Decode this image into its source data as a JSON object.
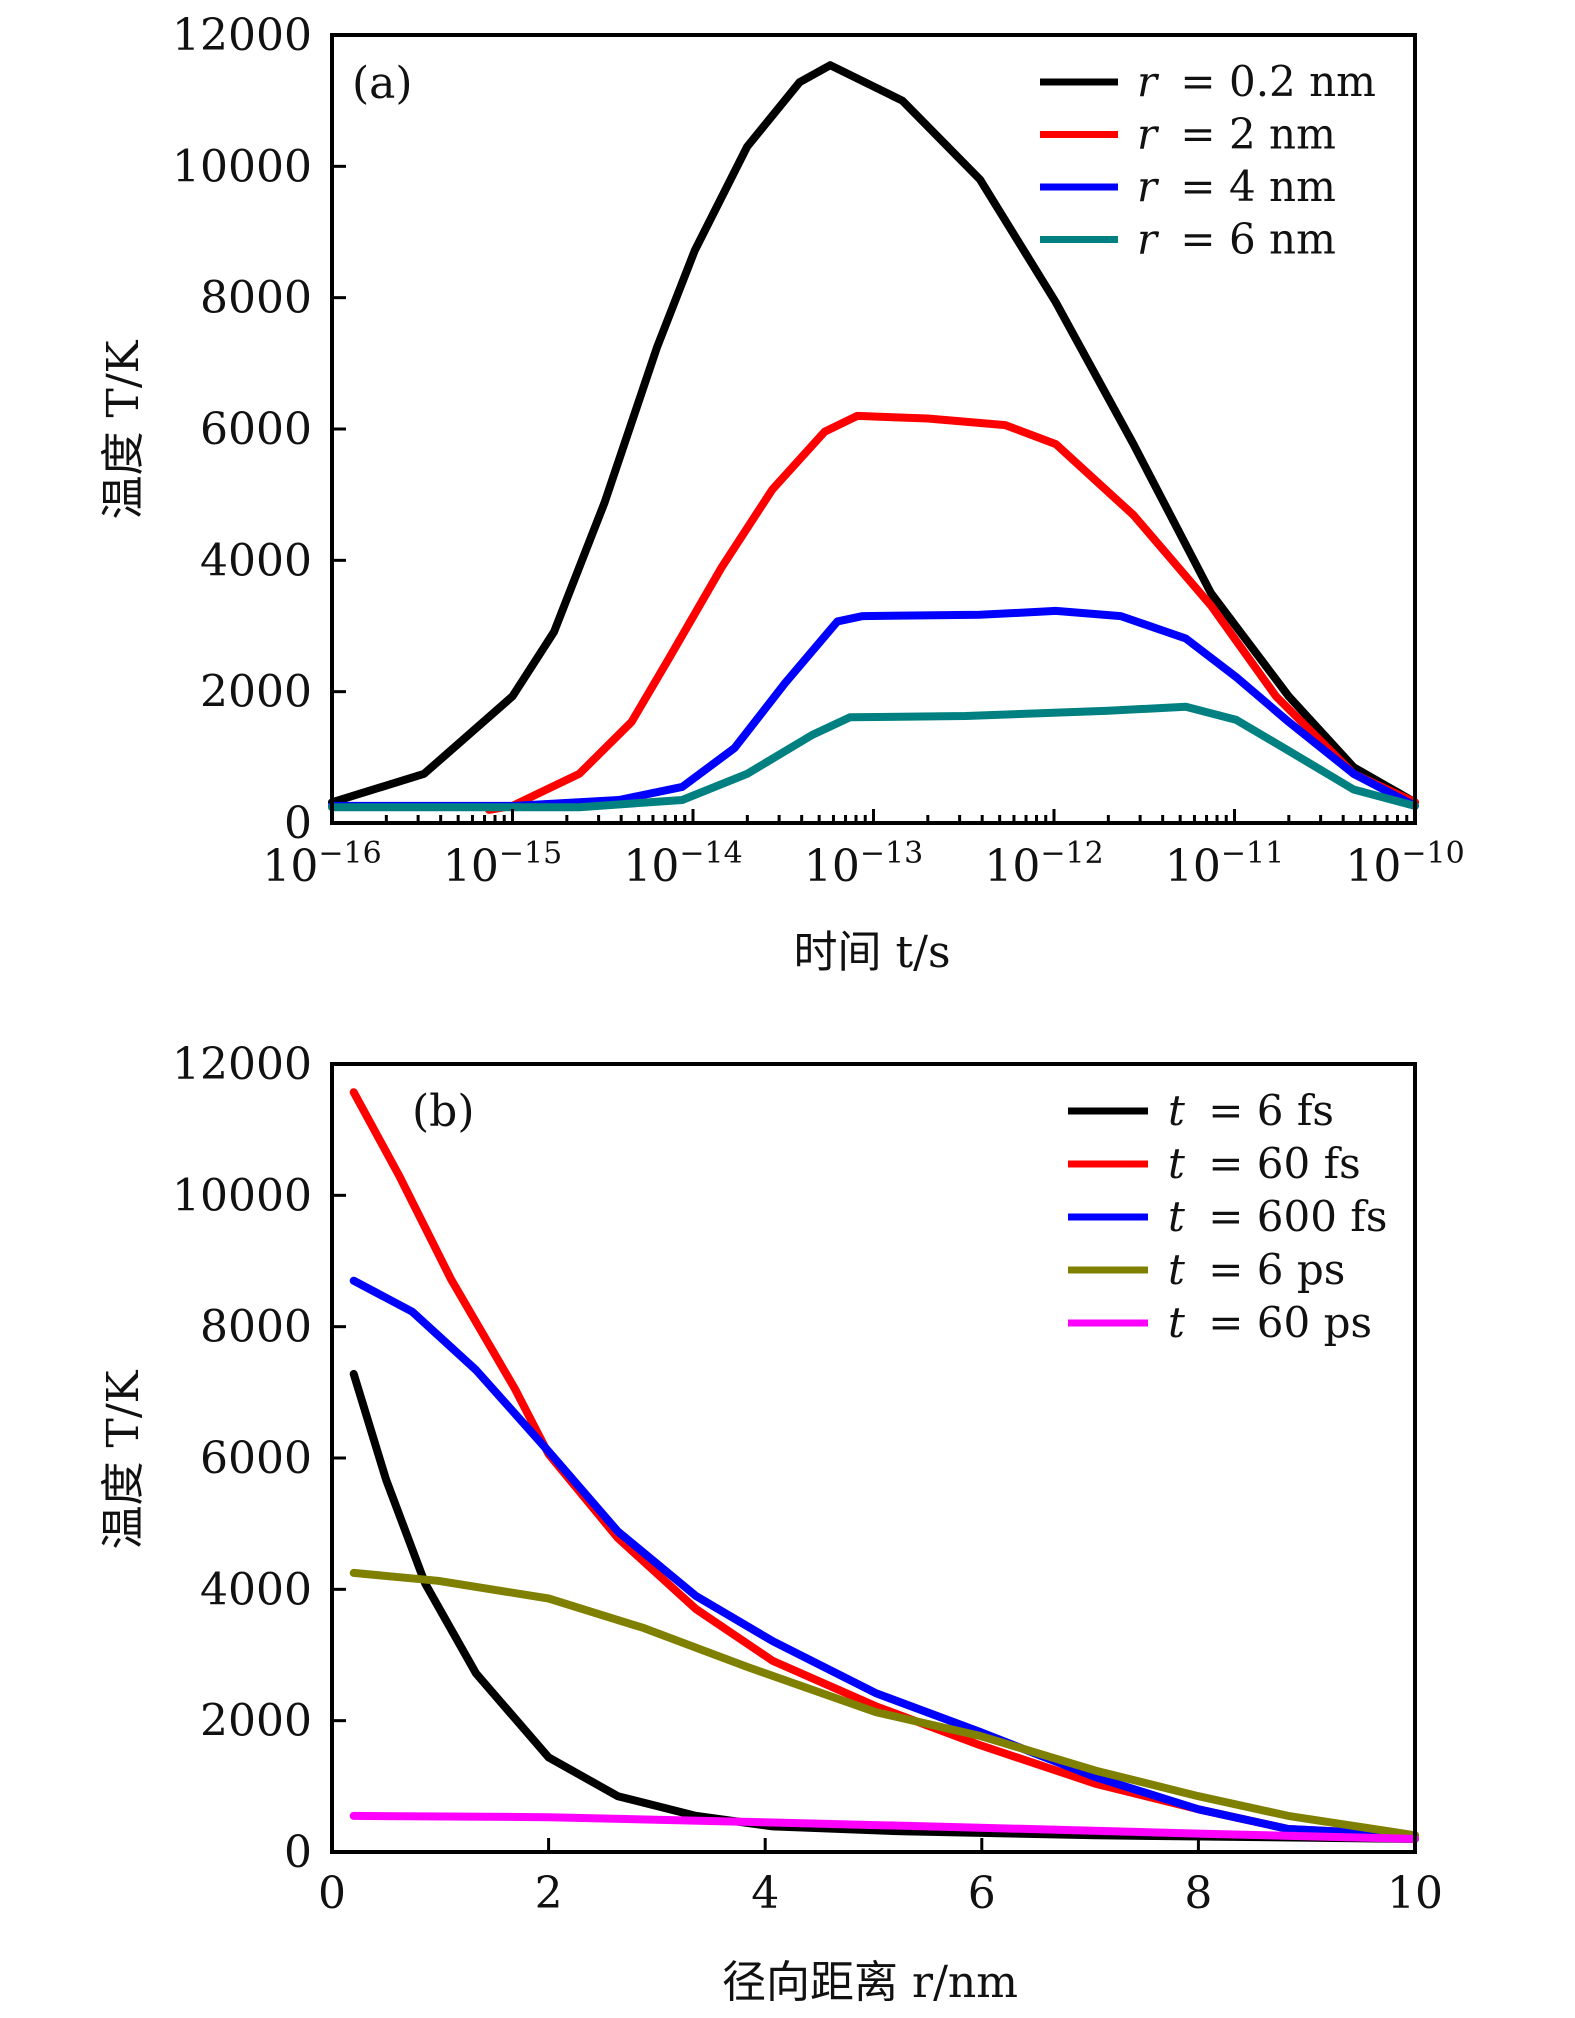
{
  "chart_data": [
    {
      "panel_label": "(a)",
      "type": "line",
      "xscale": "log",
      "xlabel": "时间 t/s",
      "ylabel": "温度 T/K",
      "xlim_log10": [
        -16,
        -10
      ],
      "ylim": [
        0,
        12000
      ],
      "x_tick_labels": [
        {
          "base": "10",
          "exp": "−16",
          "log10": -16
        },
        {
          "base": "10",
          "exp": "−15",
          "log10": -15
        },
        {
          "base": "10",
          "exp": "−14",
          "log10": -14
        },
        {
          "base": "10",
          "exp": "−13",
          "log10": -13
        },
        {
          "base": "10",
          "exp": "−12",
          "log10": -12
        },
        {
          "base": "10",
          "exp": "−11",
          "log10": -11
        },
        {
          "base": "10",
          "exp": "−10",
          "log10": -10
        }
      ],
      "y_ticks": [
        0,
        2000,
        4000,
        6000,
        8000,
        10000,
        12000
      ],
      "y_tick_labels": [
        "0",
        "2000",
        "4000",
        "6000",
        "8000",
        "10000",
        "12000"
      ],
      "legend_position": "top-right",
      "series": [
        {
          "name": "r = 0.2 nm",
          "var": "r",
          "value_text": "= 0.2 nm",
          "color": "#000000",
          "log10_t": [
            -16.0,
            -15.49,
            -15.0,
            -14.77,
            -14.49,
            -14.2,
            -13.99,
            -13.7,
            -13.41,
            -13.24,
            -12.84,
            -12.41,
            -11.99,
            -11.56,
            -11.13,
            -10.7,
            -10.34,
            -10.0
          ],
          "T": [
            315,
            750,
            1930,
            2910,
            4880,
            7240,
            8720,
            10300,
            11280,
            11540,
            11000,
            9800,
            7930,
            5770,
            3500,
            1930,
            850,
            315
          ]
        },
        {
          "name": "r = 2 nm",
          "var": "r",
          "value_text": "= 2 nm",
          "color": "#ff0000",
          "log10_t": [
            -15.13,
            -15.0,
            -14.63,
            -14.34,
            -14.13,
            -13.84,
            -13.56,
            -13.27,
            -13.09,
            -12.7,
            -12.27,
            -11.99,
            -11.56,
            -11.13,
            -10.77,
            -10.34,
            -10.0
          ],
          "T": [
            200,
            260,
            750,
            1540,
            2520,
            3900,
            5080,
            5960,
            6200,
            6160,
            6060,
            5770,
            4690,
            3310,
            1930,
            750,
            315
          ]
        },
        {
          "name": "r = 4 nm",
          "var": "r",
          "value_text": "= 4 nm",
          "color": "#0000ff",
          "log10_t": [
            -16.0,
            -14.99,
            -14.41,
            -14.06,
            -13.77,
            -13.49,
            -13.2,
            -13.06,
            -12.41,
            -11.99,
            -11.63,
            -11.27,
            -10.99,
            -10.7,
            -10.34,
            -10.0
          ],
          "T": [
            260,
            260,
            350,
            550,
            1140,
            2130,
            3070,
            3150,
            3170,
            3230,
            3150,
            2810,
            2220,
            1540,
            750,
            260
          ]
        },
        {
          "name": "r = 6 nm",
          "var": "r",
          "value_text": "= 6 nm",
          "color": "#008080",
          "log10_t": [
            -16.0,
            -14.63,
            -14.06,
            -13.7,
            -13.34,
            -13.13,
            -12.49,
            -11.7,
            -11.27,
            -10.99,
            -10.7,
            -10.34,
            -10.0
          ],
          "T": [
            240,
            240,
            350,
            750,
            1340,
            1610,
            1630,
            1710,
            1770,
            1570,
            1100,
            510,
            260
          ]
        }
      ]
    },
    {
      "panel_label": "(b)",
      "type": "line",
      "xscale": "linear",
      "xlabel": "径向距离 r/nm",
      "ylabel": "温度 T/K",
      "xlim": [
        0,
        10
      ],
      "ylim": [
        0,
        12000
      ],
      "x_ticks": [
        0,
        2,
        4,
        6,
        8,
        10
      ],
      "x_tick_labels": [
        "0",
        "2",
        "4",
        "6",
        "8",
        "10"
      ],
      "y_ticks": [
        0,
        2000,
        4000,
        6000,
        8000,
        10000,
        12000
      ],
      "y_tick_labels": [
        "0",
        "2000",
        "4000",
        "6000",
        "8000",
        "10000",
        "12000"
      ],
      "legend_position": "top-right",
      "series": [
        {
          "name": "t = 6 fs",
          "var": "t",
          "value_text": "= 6 fs",
          "color": "#000000",
          "r": [
            0.2,
            0.5,
            0.86,
            1.33,
            2.0,
            2.64,
            3.36,
            4.07,
            5.26,
            7.05,
            10.0
          ],
          "T": [
            7280,
            5670,
            4090,
            2720,
            1440,
            850,
            550,
            390,
            315,
            255,
            200
          ]
        },
        {
          "name": "t = 60 fs",
          "var": "t",
          "value_text": "= 60 fs",
          "color": "#ff0000",
          "r": [
            0.2,
            0.62,
            1.1,
            1.69,
            2.0,
            2.64,
            3.36,
            4.07,
            5.02,
            5.98,
            7.05,
            8.0,
            8.83,
            10.0
          ],
          "T": [
            11570,
            10300,
            8720,
            7050,
            6060,
            4780,
            3700,
            2910,
            2220,
            1630,
            1040,
            650,
            350,
            255
          ]
        },
        {
          "name": "t = 600 fs",
          "var": "t",
          "value_text": "= 600 fs",
          "color": "#0000ff",
          "r": [
            0.2,
            0.74,
            1.33,
            2.0,
            2.64,
            3.36,
            4.07,
            5.02,
            5.98,
            7.05,
            8.0,
            8.83,
            10.0
          ],
          "T": [
            8700,
            8230,
            7340,
            6100,
            4880,
            3900,
            3210,
            2420,
            1830,
            1140,
            650,
            350,
            255
          ]
        },
        {
          "name": "t = 6 ps",
          "var": "t",
          "value_text": "= 6 ps",
          "color": "#808000",
          "r": [
            0.2,
            0.98,
            2.0,
            2.88,
            3.83,
            5.02,
            5.98,
            7.05,
            8.0,
            8.83,
            10.0
          ],
          "T": [
            4250,
            4130,
            3860,
            3410,
            2820,
            2130,
            1770,
            1240,
            850,
            550,
            255
          ]
        },
        {
          "name": "t = 60 ps",
          "var": "t",
          "value_text": "= 60 ps",
          "color": "#ff00ff",
          "r": [
            0.2,
            2.0,
            4.07,
            5.98,
            8.0,
            10.0
          ],
          "T": [
            550,
            530,
            450,
            370,
            280,
            200
          ]
        }
      ]
    }
  ]
}
